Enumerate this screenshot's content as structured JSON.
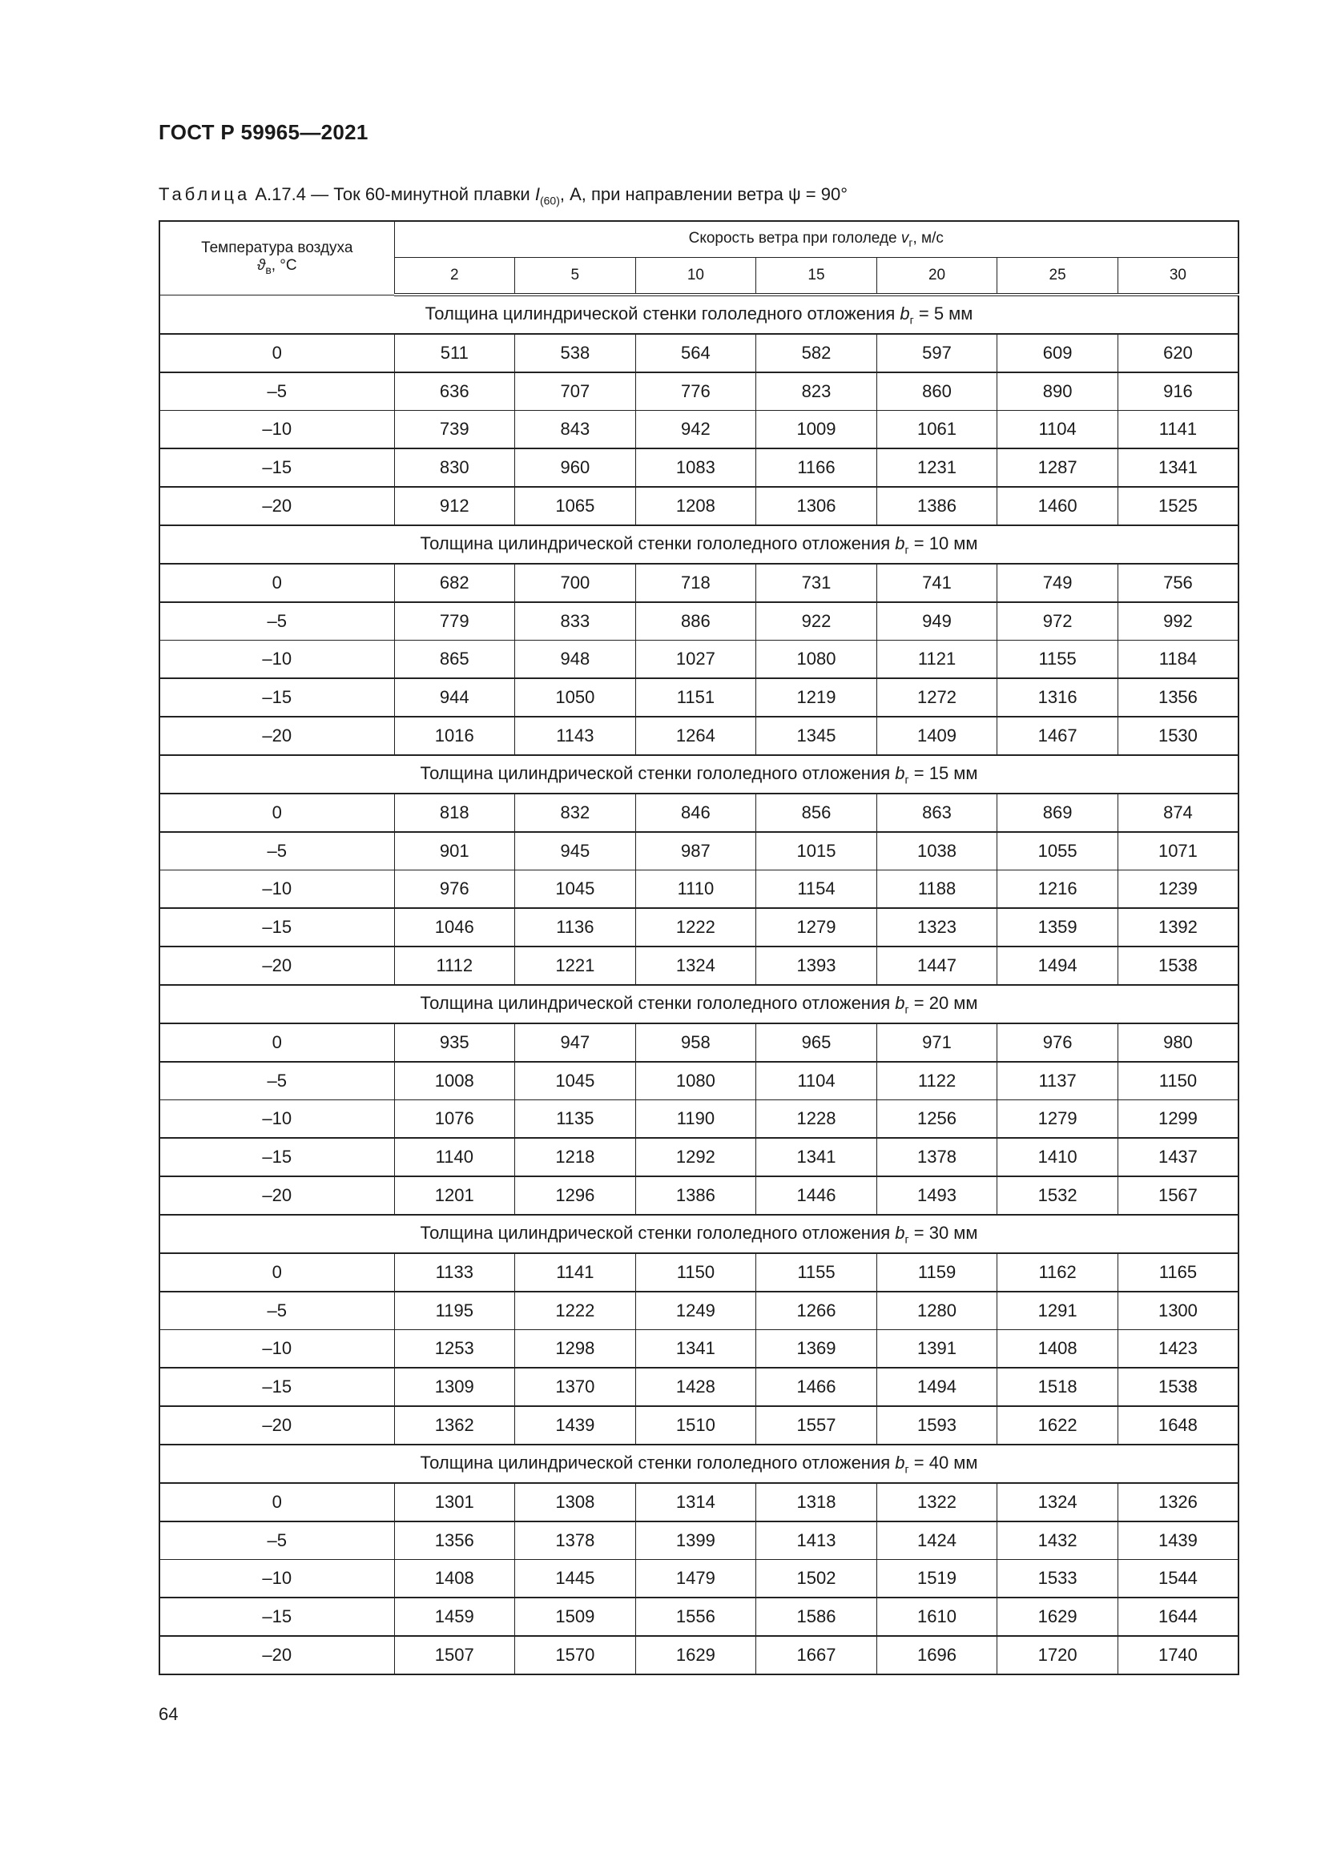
{
  "header": {
    "doc_title": "ГОСТ Р 59965—2021"
  },
  "caption": {
    "label": "Таблица",
    "text_before": " А.17.4 — Ток 60-минутной плавки ",
    "symbol": "I",
    "symbol_sub": "(60)",
    "text_after": ", А, при направлении ветра ψ = 90°"
  },
  "table": {
    "row_header": {
      "line1": "Температура воздуха",
      "symbol": "ϑ",
      "symbol_sub": "в",
      "unit": ", °С"
    },
    "col_group": {
      "text": "Скорость ветра при гололеде ",
      "symbol": "v",
      "symbol_sub": "г",
      "unit": ", м/с"
    },
    "columns": [
      "2",
      "5",
      "10",
      "15",
      "20",
      "25",
      "30"
    ],
    "section_prefix": "Толщина цилиндрической стенки гололедного отложения ",
    "section_symbol": "b",
    "section_symbol_sub": "г",
    "sections": [
      {
        "suffix": " = 5 мм",
        "rows": [
          {
            "t": "0",
            "v": [
              "511",
              "538",
              "564",
              "582",
              "597",
              "609",
              "620"
            ]
          },
          {
            "t": "–5",
            "v": [
              "636",
              "707",
              "776",
              "823",
              "860",
              "890",
              "916"
            ]
          },
          {
            "t": "–10",
            "v": [
              "739",
              "843",
              "942",
              "1009",
              "1061",
              "1104",
              "1141"
            ]
          },
          {
            "t": "–15",
            "v": [
              "830",
              "960",
              "1083",
              "1166",
              "1231",
              "1287",
              "1341"
            ]
          },
          {
            "t": "–20",
            "v": [
              "912",
              "1065",
              "1208",
              "1306",
              "1386",
              "1460",
              "1525"
            ]
          }
        ]
      },
      {
        "suffix": " = 10 мм",
        "rows": [
          {
            "t": "0",
            "v": [
              "682",
              "700",
              "718",
              "731",
              "741",
              "749",
              "756"
            ]
          },
          {
            "t": "–5",
            "v": [
              "779",
              "833",
              "886",
              "922",
              "949",
              "972",
              "992"
            ]
          },
          {
            "t": "–10",
            "v": [
              "865",
              "948",
              "1027",
              "1080",
              "1121",
              "1155",
              "1184"
            ]
          },
          {
            "t": "–15",
            "v": [
              "944",
              "1050",
              "1151",
              "1219",
              "1272",
              "1316",
              "1356"
            ]
          },
          {
            "t": "–20",
            "v": [
              "1016",
              "1143",
              "1264",
              "1345",
              "1409",
              "1467",
              "1530"
            ]
          }
        ]
      },
      {
        "suffix": " = 15 мм",
        "rows": [
          {
            "t": "0",
            "v": [
              "818",
              "832",
              "846",
              "856",
              "863",
              "869",
              "874"
            ]
          },
          {
            "t": "–5",
            "v": [
              "901",
              "945",
              "987",
              "1015",
              "1038",
              "1055",
              "1071"
            ]
          },
          {
            "t": "–10",
            "v": [
              "976",
              "1045",
              "1110",
              "1154",
              "1188",
              "1216",
              "1239"
            ]
          },
          {
            "t": "–15",
            "v": [
              "1046",
              "1136",
              "1222",
              "1279",
              "1323",
              "1359",
              "1392"
            ]
          },
          {
            "t": "–20",
            "v": [
              "1112",
              "1221",
              "1324",
              "1393",
              "1447",
              "1494",
              "1538"
            ]
          }
        ]
      },
      {
        "suffix": " = 20 мм",
        "rows": [
          {
            "t": "0",
            "v": [
              "935",
              "947",
              "958",
              "965",
              "971",
              "976",
              "980"
            ]
          },
          {
            "t": "–5",
            "v": [
              "1008",
              "1045",
              "1080",
              "1104",
              "1122",
              "1137",
              "1150"
            ]
          },
          {
            "t": "–10",
            "v": [
              "1076",
              "1135",
              "1190",
              "1228",
              "1256",
              "1279",
              "1299"
            ]
          },
          {
            "t": "–15",
            "v": [
              "1140",
              "1218",
              "1292",
              "1341",
              "1378",
              "1410",
              "1437"
            ]
          },
          {
            "t": "–20",
            "v": [
              "1201",
              "1296",
              "1386",
              "1446",
              "1493",
              "1532",
              "1567"
            ]
          }
        ]
      },
      {
        "suffix": " = 30 мм",
        "rows": [
          {
            "t": "0",
            "v": [
              "1133",
              "1141",
              "1150",
              "1155",
              "1159",
              "1162",
              "1165"
            ]
          },
          {
            "t": "–5",
            "v": [
              "1195",
              "1222",
              "1249",
              "1266",
              "1280",
              "1291",
              "1300"
            ]
          },
          {
            "t": "–10",
            "v": [
              "1253",
              "1298",
              "1341",
              "1369",
              "1391",
              "1408",
              "1423"
            ]
          },
          {
            "t": "–15",
            "v": [
              "1309",
              "1370",
              "1428",
              "1466",
              "1494",
              "1518",
              "1538"
            ]
          },
          {
            "t": "–20",
            "v": [
              "1362",
              "1439",
              "1510",
              "1557",
              "1593",
              "1622",
              "1648"
            ]
          }
        ]
      },
      {
        "suffix": " = 40 мм",
        "rows": [
          {
            "t": "0",
            "v": [
              "1301",
              "1308",
              "1314",
              "1318",
              "1322",
              "1324",
              "1326"
            ]
          },
          {
            "t": "–5",
            "v": [
              "1356",
              "1378",
              "1399",
              "1413",
              "1424",
              "1432",
              "1439"
            ]
          },
          {
            "t": "–10",
            "v": [
              "1408",
              "1445",
              "1479",
              "1502",
              "1519",
              "1533",
              "1544"
            ]
          },
          {
            "t": "–15",
            "v": [
              "1459",
              "1509",
              "1556",
              "1586",
              "1610",
              "1629",
              "1644"
            ]
          },
          {
            "t": "–20",
            "v": [
              "1507",
              "1570",
              "1629",
              "1667",
              "1696",
              "1720",
              "1740"
            ]
          }
        ]
      }
    ]
  },
  "footer": {
    "page_number": "64"
  }
}
